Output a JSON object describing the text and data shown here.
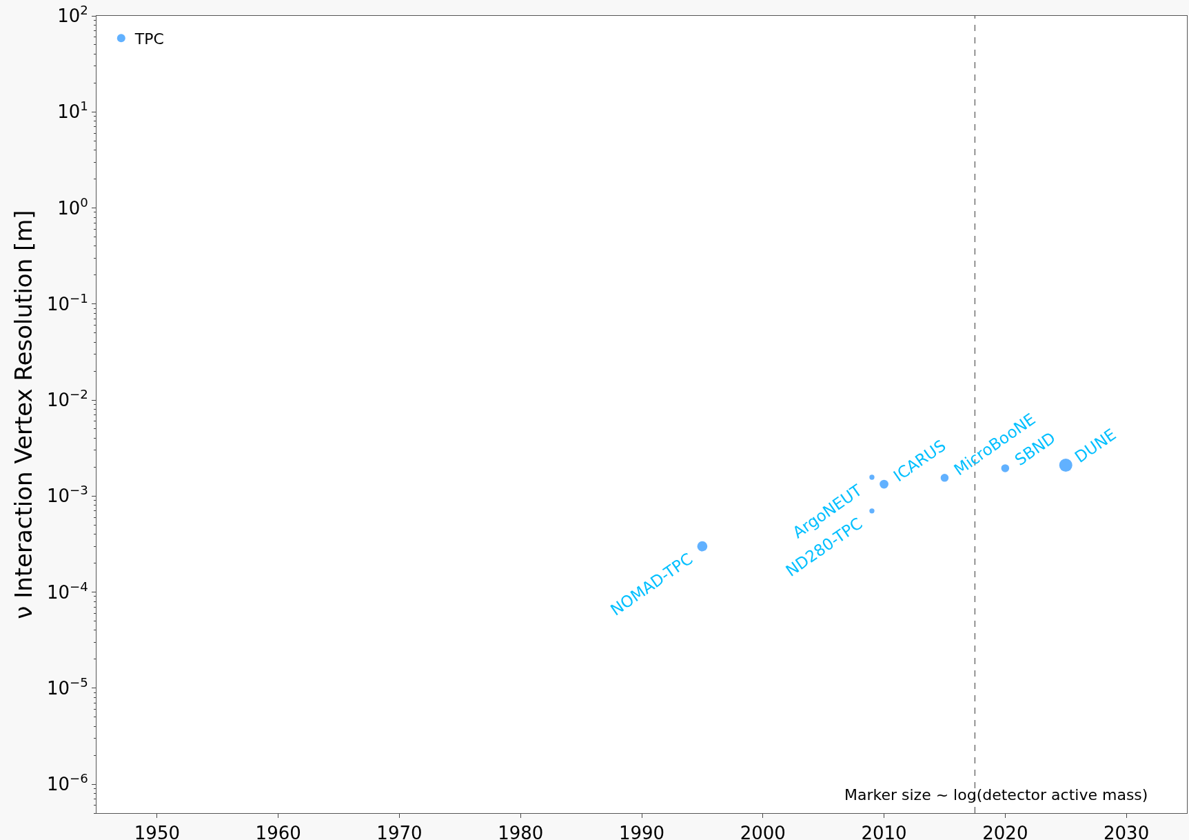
{
  "chart_data": {
    "type": "bubble",
    "ylabel": "ν Interaction Vertex Resolution [m]",
    "x": [
      1995,
      2009,
      2009,
      2010,
      2015,
      2020,
      2025
    ],
    "series": [
      {
        "name": "TPC",
        "color": "#1e90ff",
        "values": [
          0.0003,
          0.00157,
          0.0007,
          0.00133,
          0.00155,
          0.00195,
          0.0021
        ],
        "sizes": [
          0.6,
          0.15,
          0.15,
          0.45,
          0.37,
          0.37,
          1
        ]
      }
    ],
    "xlim": [
      1945,
      2035
    ],
    "xticks": [
      1950,
      1960,
      1970,
      1980,
      1990,
      2000,
      2010,
      2020,
      2030
    ],
    "ylim": [
      5e-07,
      100
    ],
    "yticks": [
      {
        "value": 1e-06,
        "label": "10$^{−6}$"
      },
      {
        "value": 1e-05,
        "label": "10$^{−5}$"
      },
      {
        "value": 0.0001,
        "label": "10$^{−4}$"
      },
      {
        "value": 0.001,
        "label": "10$^{−3}$"
      },
      {
        "value": 0.01,
        "label": "10$^{−2}$"
      },
      {
        "value": 0.1,
        "label": "10$^{−1}$"
      },
      {
        "value": 1,
        "label": "10$^{0}$"
      },
      {
        "value": 10,
        "label": "10$^{1}$"
      },
      {
        "value": 100,
        "label": "10$^{2}$"
      }
    ],
    "log": "y",
    "grid": false,
    "legend": "top left",
    "marker": "circle",
    "ref_lines": [
      {
        "axis": "x",
        "value": 2017.5,
        "color": "#707070",
        "line_style": "dashed"
      }
    ],
    "annotations": [
      {
        "text": "NOMAD-TPC",
        "x": 1995,
        "y": 0.0003
      },
      {
        "text": "ArgoNEUT",
        "x": 2009,
        "y": 0.00157
      },
      {
        "text": "ND280-TPC",
        "x": 2009,
        "y": 0.0007
      },
      {
        "text": "ICARUS",
        "x": 2010,
        "y": 0.00133
      },
      {
        "text": "MicroBooNE",
        "x": 2015,
        "y": 0.00155
      },
      {
        "text": "SBND",
        "x": 2020,
        "y": 0.00195
      },
      {
        "text": "DUNE",
        "x": 2025,
        "y": 0.0021
      },
      "Marker size ~ log(detector active mass)"
    ]
  }
}
